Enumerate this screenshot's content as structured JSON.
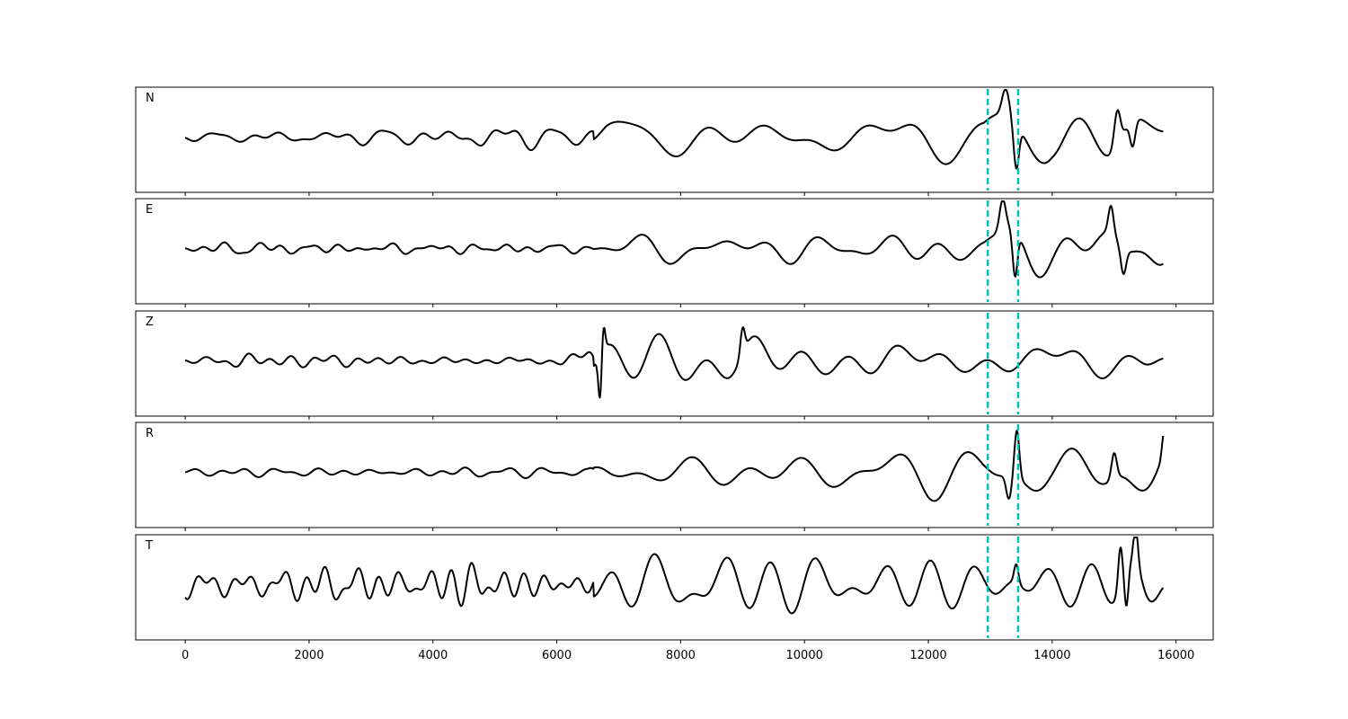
{
  "chart_data": {
    "type": "line",
    "title": "",
    "xlabel": "",
    "ylabel": "",
    "xlim": [
      -800,
      16600
    ],
    "x_ticks": [
      0,
      2000,
      4000,
      6000,
      8000,
      10000,
      12000,
      14000,
      16000
    ],
    "x_tick_labels": [
      "0",
      "2000",
      "4000",
      "6000",
      "8000",
      "10000",
      "12000",
      "14000",
      "16000"
    ],
    "x_end": 15800,
    "markers": [
      12960,
      13450
    ],
    "marker_color": "#00bfbf",
    "line_color": "#000000",
    "grid": false,
    "panels": [
      {
        "label": "N",
        "envelope": [
          [
            0,
            0.08
          ],
          [
            1000,
            0.1
          ],
          [
            2500,
            0.12
          ],
          [
            4000,
            0.14
          ],
          [
            4800,
            0.25
          ],
          [
            6000,
            0.14
          ],
          [
            6500,
            0.15
          ],
          [
            6800,
            0.3
          ],
          [
            8000,
            0.35
          ],
          [
            10000,
            0.38
          ],
          [
            12000,
            0.4
          ],
          [
            12900,
            0.3
          ],
          [
            13200,
            0.55
          ],
          [
            13500,
            0.6
          ],
          [
            14000,
            0.45
          ],
          [
            15000,
            0.75
          ],
          [
            15800,
            0.55
          ]
        ],
        "events": [
          [
            13420,
            -0.95,
            60
          ],
          [
            13250,
            0.55,
            80
          ],
          [
            15050,
            0.75,
            70
          ],
          [
            15300,
            -0.55,
            60
          ]
        ],
        "seed": 11
      },
      {
        "label": "E",
        "envelope": [
          [
            0,
            0.1
          ],
          [
            1000,
            0.14
          ],
          [
            3000,
            0.1
          ],
          [
            5000,
            0.12
          ],
          [
            6500,
            0.08
          ],
          [
            6800,
            0.25
          ],
          [
            8000,
            0.3
          ],
          [
            10000,
            0.32
          ],
          [
            12000,
            0.4
          ],
          [
            12900,
            0.3
          ],
          [
            13200,
            0.6
          ],
          [
            14000,
            0.45
          ],
          [
            15000,
            0.65
          ],
          [
            15800,
            0.55
          ]
        ],
        "events": [
          [
            13400,
            -0.98,
            55
          ],
          [
            13200,
            0.62,
            70
          ],
          [
            14950,
            0.6,
            60
          ],
          [
            15150,
            -0.55,
            60
          ]
        ],
        "seed": 23
      },
      {
        "label": "Z",
        "envelope": [
          [
            0,
            0.05
          ],
          [
            1000,
            0.12
          ],
          [
            2500,
            0.1
          ],
          [
            4000,
            0.07
          ],
          [
            5000,
            0.1
          ],
          [
            6000,
            0.15
          ],
          [
            6600,
            0.5
          ],
          [
            7500,
            0.55
          ],
          [
            10000,
            0.52
          ],
          [
            12000,
            0.55
          ],
          [
            14000,
            0.52
          ],
          [
            15500,
            0.45
          ],
          [
            15800,
            0.2
          ]
        ],
        "events": [
          [
            6700,
            -1.0,
            40
          ],
          [
            6750,
            0.6,
            40
          ],
          [
            9000,
            0.55,
            50
          ]
        ],
        "seed": 37
      },
      {
        "label": "R",
        "envelope": [
          [
            0,
            0.08
          ],
          [
            2000,
            0.08
          ],
          [
            3500,
            0.05
          ],
          [
            4500,
            0.1
          ],
          [
            5500,
            0.07
          ],
          [
            6500,
            0.06
          ],
          [
            6800,
            0.25
          ],
          [
            10000,
            0.3
          ],
          [
            12000,
            0.35
          ],
          [
            12900,
            0.3
          ],
          [
            13400,
            0.5
          ],
          [
            14000,
            0.35
          ],
          [
            15000,
            0.55
          ],
          [
            15800,
            0.45
          ]
        ],
        "events": [
          [
            13430,
            1.0,
            55
          ],
          [
            13300,
            -0.5,
            60
          ],
          [
            15000,
            0.55,
            60
          ],
          [
            15800,
            0.45,
            40
          ]
        ],
        "seed": 53
      },
      {
        "label": "T",
        "envelope": [
          [
            0,
            0.25
          ],
          [
            1000,
            0.2
          ],
          [
            2500,
            0.35
          ],
          [
            3500,
            0.2
          ],
          [
            4800,
            0.45
          ],
          [
            5500,
            0.25
          ],
          [
            6500,
            0.22
          ],
          [
            7000,
            0.45
          ],
          [
            8500,
            0.6
          ],
          [
            10000,
            0.5
          ],
          [
            12000,
            0.55
          ],
          [
            13000,
            0.45
          ],
          [
            14000,
            0.55
          ],
          [
            15500,
            0.8
          ],
          [
            15800,
            0.35
          ]
        ],
        "events": [
          [
            15100,
            0.85,
            50
          ],
          [
            15350,
            0.8,
            50
          ],
          [
            15200,
            -0.8,
            45
          ],
          [
            13420,
            0.4,
            50
          ]
        ],
        "seed": 71
      }
    ]
  }
}
